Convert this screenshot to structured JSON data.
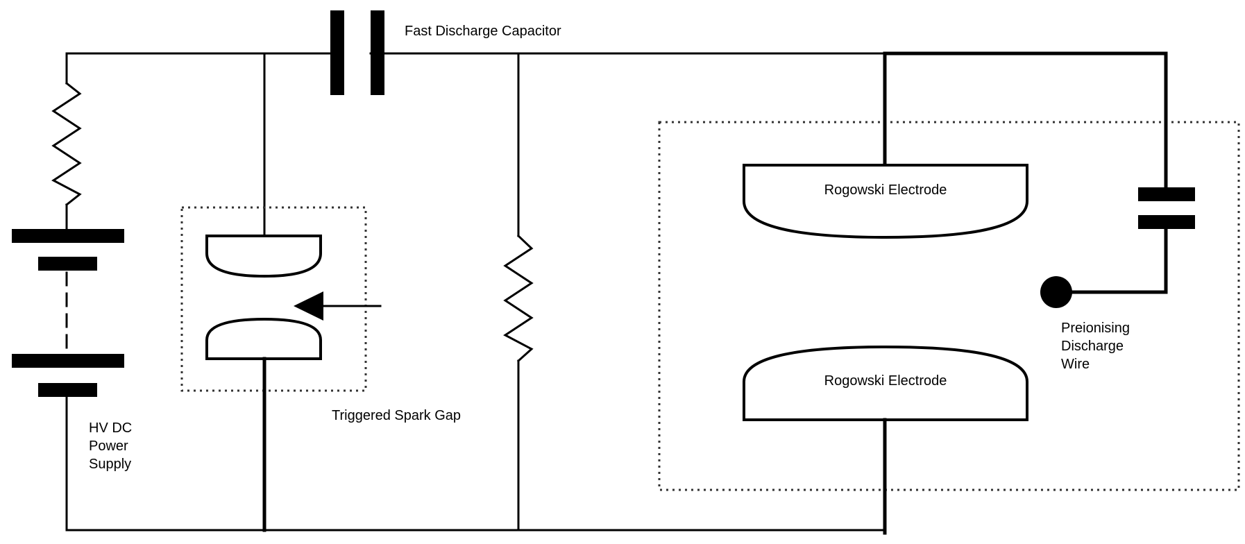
{
  "labels": {
    "fast_discharge_capacitor": "Fast Discharge Capacitor",
    "triggered_spark_gap": "Triggered Spark Gap",
    "rogowski_electrode_top": "Rogowski Electrode",
    "rogowski_electrode_bottom": "Rogowski Electrode",
    "hv_dc_power_supply": [
      "HV DC",
      "Power",
      "Supply"
    ],
    "preionising_discharge_wire": [
      "Preionising",
      "Discharge",
      "Wire"
    ]
  }
}
